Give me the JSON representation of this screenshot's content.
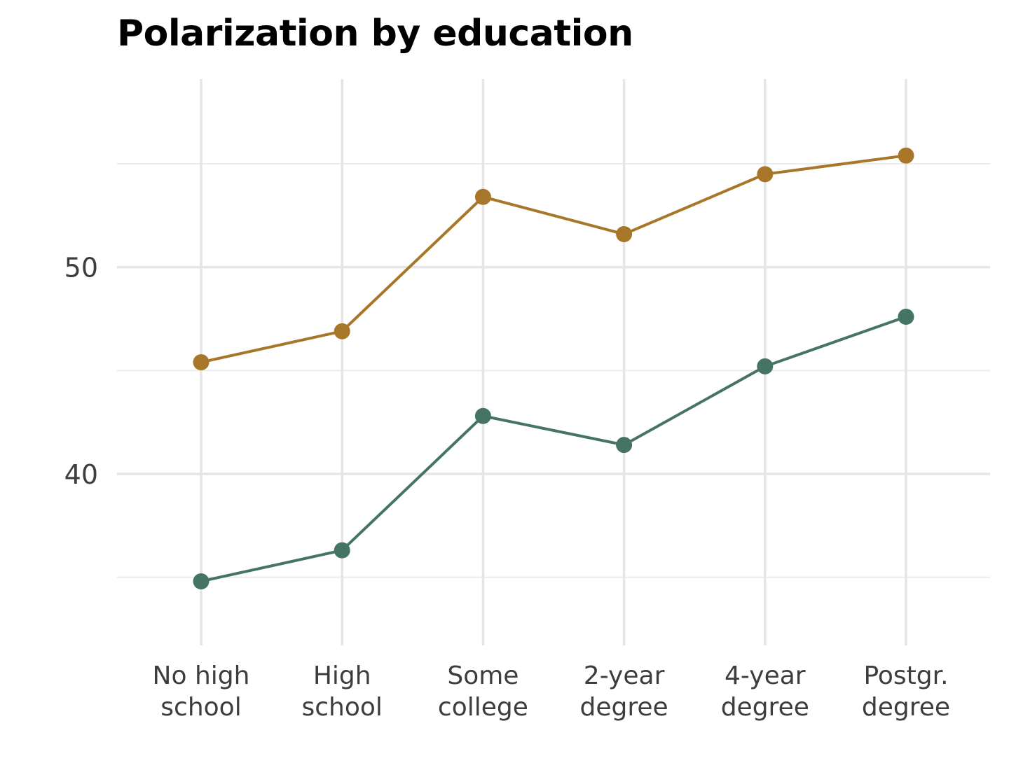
{
  "chart_data": {
    "type": "line",
    "title": "Polarization by education",
    "xlabel": "",
    "ylabel": "",
    "categories": [
      [
        "No high",
        "school"
      ],
      [
        "High",
        "school"
      ],
      [
        "Some",
        "college"
      ],
      [
        "2-year",
        "degree"
      ],
      [
        "4-year",
        "degree"
      ],
      [
        "Postgr.",
        "degree"
      ]
    ],
    "y_ticks": [
      40,
      50
    ],
    "ylim": [
      31.7,
      59.1
    ],
    "grid": true,
    "legend": "none",
    "series": [
      {
        "color": "#a87628",
        "values": [
          45.4,
          46.9,
          53.4,
          51.6,
          54.5,
          55.4
        ]
      },
      {
        "color": "#467462",
        "values": [
          34.8,
          36.3,
          42.8,
          41.4,
          45.2,
          47.6
        ]
      }
    ]
  }
}
